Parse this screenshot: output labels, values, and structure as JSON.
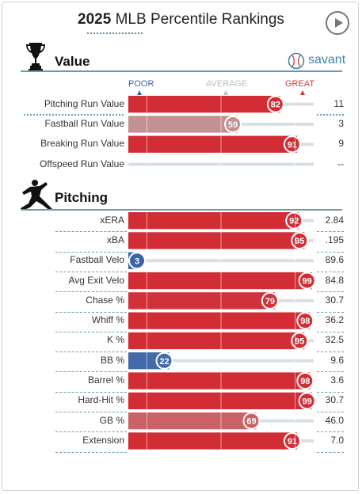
{
  "header": {
    "title_year": "2025",
    "title_rest": "MLB Percentile Rankings"
  },
  "brand": {
    "name": "savant"
  },
  "scale": {
    "poor": "POOR",
    "average": "AVERAGE",
    "great": "GREAT"
  },
  "colors": {
    "great": "#d22d35",
    "poor": "#3a64a8",
    "average": "#bcbcbc",
    "track": "#d6e0e6",
    "accent": "#6a9aac"
  },
  "chart_data": {
    "type": "bar",
    "title": "2025 MLB Percentile Rankings",
    "xlim": [
      0,
      100
    ],
    "sections": [
      {
        "name": "Value",
        "metrics": [
          {
            "label": "Pitching Run Value",
            "percentile": 82,
            "value": "11"
          },
          {
            "label": "Fastball Run Value",
            "percentile": 59,
            "value": "3"
          },
          {
            "label": "Breaking Run Value",
            "percentile": 91,
            "value": "9"
          },
          {
            "label": "Offspeed Run Value",
            "percentile": null,
            "value": "--"
          }
        ]
      },
      {
        "name": "Pitching",
        "metrics": [
          {
            "label": "xERA",
            "percentile": 92,
            "value": "2.84"
          },
          {
            "label": "xBA",
            "percentile": 95,
            "value": ".195"
          },
          {
            "label": "Fastball Velo",
            "percentile": 3,
            "value": "89.6"
          },
          {
            "label": "Avg Exit Velo",
            "percentile": 99,
            "value": "84.8"
          },
          {
            "label": "Chase %",
            "percentile": 79,
            "value": "30.7"
          },
          {
            "label": "Whiff %",
            "percentile": 98,
            "value": "36.2"
          },
          {
            "label": "K %",
            "percentile": 95,
            "value": "32.5"
          },
          {
            "label": "BB %",
            "percentile": 22,
            "value": "9.6"
          },
          {
            "label": "Barrel %",
            "percentile": 98,
            "value": "3.6"
          },
          {
            "label": "Hard-Hit %",
            "percentile": 99,
            "value": "30.7"
          },
          {
            "label": "GB %",
            "percentile": 69,
            "value": "46.0"
          },
          {
            "label": "Extension",
            "percentile": 91,
            "value": "7.0"
          }
        ]
      }
    ]
  }
}
